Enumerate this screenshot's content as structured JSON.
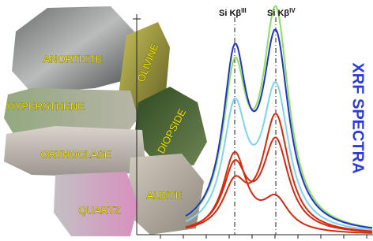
{
  "title": "XRF SPECTRA",
  "minerals": [
    "ANORTHITE",
    "OLIVINE",
    "HYPERSTHENE",
    "DIOPSIDE",
    "ORTHOCLASE",
    "ALBITE",
    "QUARTZ"
  ],
  "peaks": [
    {
      "label": "Si Kβ",
      "sup": "III"
    },
    {
      "label": "Si Kβ",
      "sup": "IV"
    }
  ]
}
